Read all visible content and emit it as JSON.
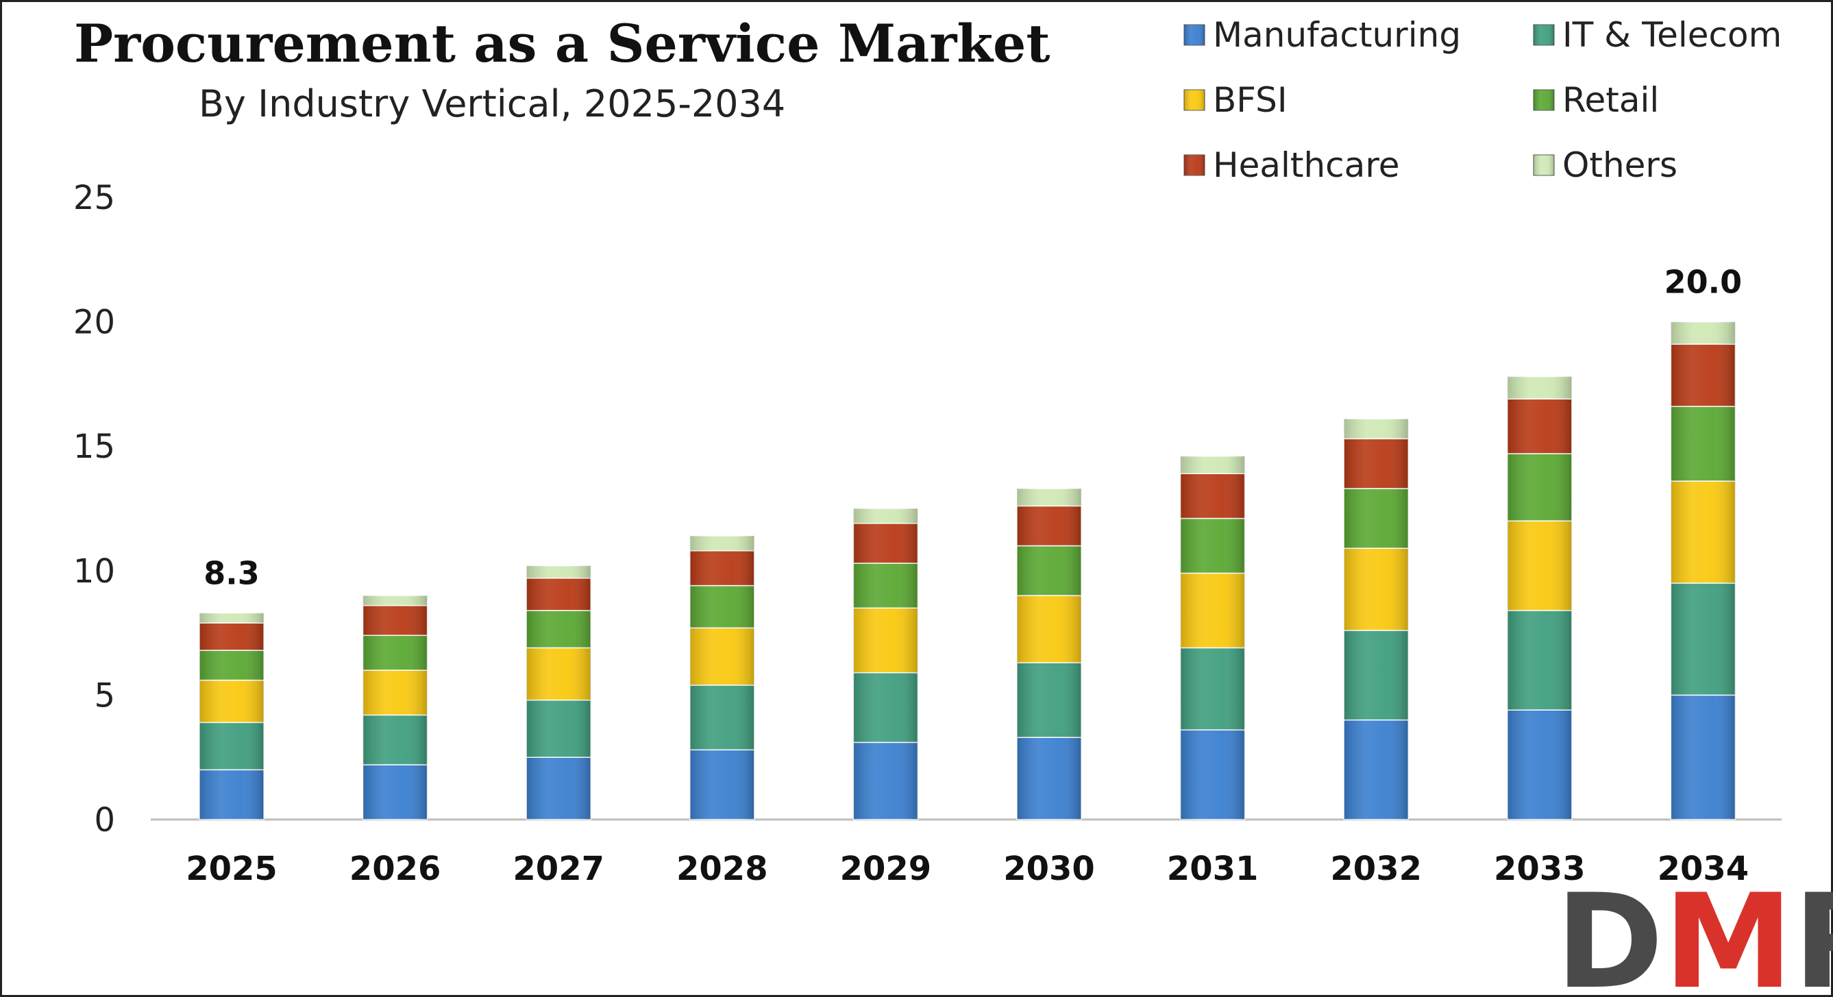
{
  "chart_data": {
    "type": "bar",
    "stacked": true,
    "title": "Procurement as a Service Market",
    "subtitle": "By Industry Vertical, 2025-2034",
    "xlabel": "",
    "ylabel": "",
    "ylim": [
      0,
      25
    ],
    "yticks": [
      "0",
      "5",
      "10",
      "15",
      "20",
      "25"
    ],
    "grid": false,
    "legend_position": "top-right",
    "categories": [
      "2025",
      "2026",
      "2027",
      "2028",
      "2029",
      "2030",
      "2031",
      "2032",
      "2033",
      "2034"
    ],
    "series": [
      {
        "name": "Manufacturing",
        "color": "#3a7fd0",
        "values": [
          2.0,
          2.2,
          2.5,
          2.8,
          3.1,
          3.3,
          3.6,
          4.0,
          4.4,
          5.0
        ]
      },
      {
        "name": "IT & Telecom",
        "color": "#3f9e7e",
        "values": [
          1.9,
          2.0,
          2.3,
          2.6,
          2.8,
          3.0,
          3.3,
          3.6,
          4.0,
          4.5
        ]
      },
      {
        "name": "BFSI",
        "color": "#f9c80e",
        "values": [
          1.7,
          1.8,
          2.1,
          2.3,
          2.6,
          2.7,
          3.0,
          3.3,
          3.6,
          4.1
        ]
      },
      {
        "name": "Retail",
        "color": "#5aa832",
        "values": [
          1.2,
          1.4,
          1.5,
          1.7,
          1.8,
          2.0,
          2.2,
          2.4,
          2.7,
          3.0
        ]
      },
      {
        "name": "Healthcare",
        "color": "#b83a16",
        "values": [
          1.1,
          1.2,
          1.3,
          1.4,
          1.6,
          1.6,
          1.8,
          2.0,
          2.2,
          2.5
        ]
      },
      {
        "name": "Others",
        "color": "#cfe8b4",
        "values": [
          0.4,
          0.4,
          0.5,
          0.6,
          0.6,
          0.7,
          0.7,
          0.8,
          0.9,
          0.9
        ]
      }
    ],
    "data_labels": [
      {
        "category": "2025",
        "text": "8.3"
      },
      {
        "category": "2034",
        "text": "20.0"
      }
    ]
  },
  "logo": {
    "text": "DMR",
    "color_dark": "#4a4a4a",
    "color_accent": "#d9322b"
  }
}
